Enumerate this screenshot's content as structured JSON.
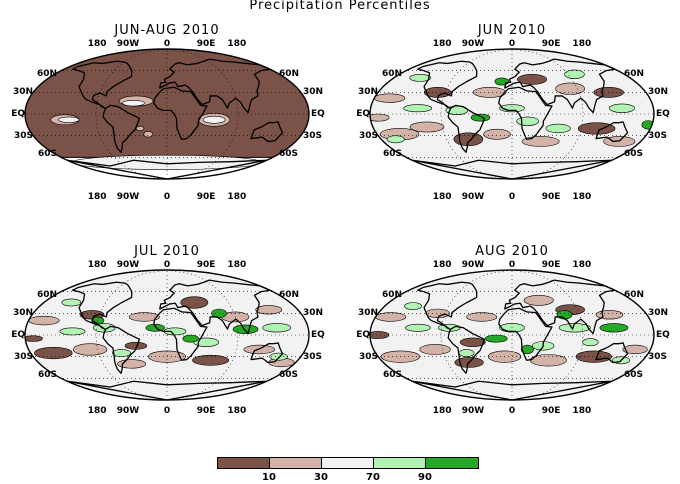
{
  "title": "Precipitation Percentiles",
  "lon_labels": [
    "180",
    "90W",
    "0",
    "90E",
    "180"
  ],
  "lat_labels_left": [
    "60N",
    "30N",
    "EQ",
    "30S",
    "60S"
  ],
  "lat_labels_right": [
    "60N",
    "30N",
    "EQ",
    "30S",
    "60S"
  ],
  "panels": [
    {
      "name": "jun-aug-2010",
      "title": "JUN-AUG 2010"
    },
    {
      "name": "jun-2010",
      "title": "JUN 2010"
    },
    {
      "name": "jul-2010",
      "title": "JUL 2010"
    },
    {
      "name": "aug-2010",
      "title": "AUG 2010"
    }
  ],
  "legend": {
    "labels": [
      "10",
      "30",
      "70",
      "90"
    ],
    "colors": [
      "#7a5248",
      "#d3b3a7",
      "#f2f2f2",
      "#b2f2b2",
      "#25a825"
    ]
  },
  "colors": {
    "dry": "#7a5248",
    "below": "#d3b3a7",
    "normal": "#f2f2f2",
    "above": "#b2f2b2",
    "wet": "#25a825"
  }
}
